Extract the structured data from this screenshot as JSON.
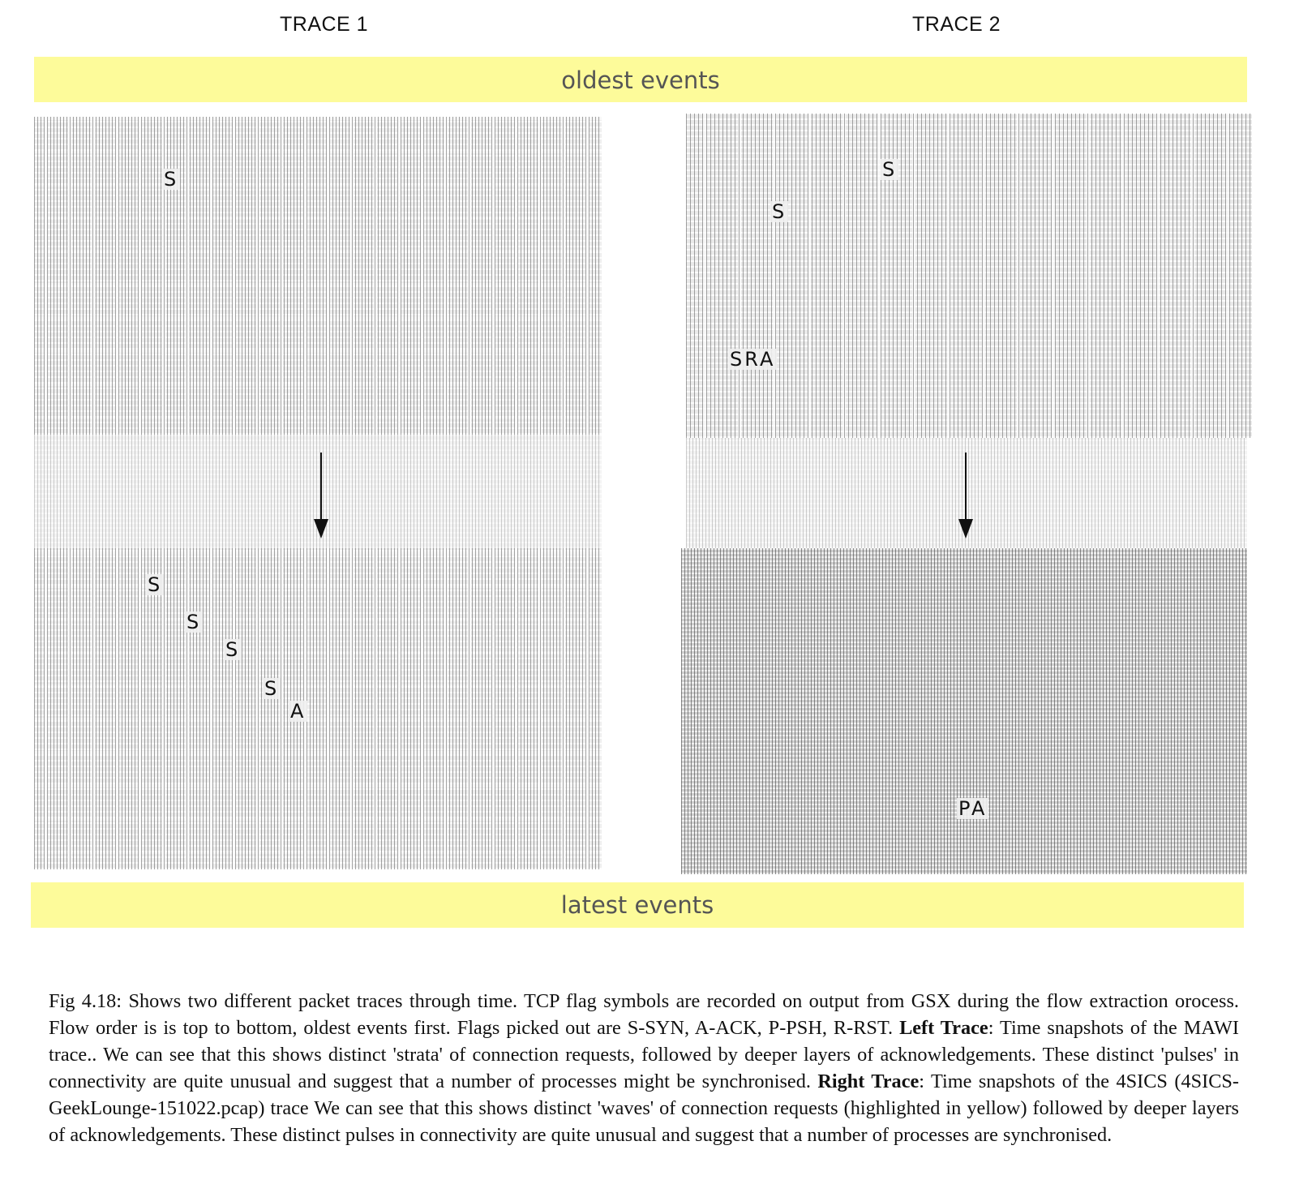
{
  "traces": {
    "trace1_title": "TRACE 1",
    "trace2_title": "TRACE 2"
  },
  "bands": {
    "top_label": "oldest events",
    "bottom_label": "latest events",
    "color": "#fdfb9a"
  },
  "trace1_flags": {
    "top_s": "S",
    "bot_s1": "S",
    "bot_s2": "S",
    "bot_s3": "S",
    "bot_s4": "S",
    "bot_a": "A"
  },
  "trace2_flags": {
    "top_s1": "S",
    "top_s2": "S",
    "top_sra": "SRA",
    "bot_pa": "PA"
  },
  "caption": {
    "part1": "Fig 4.18: Shows two different packet traces through time. TCP flag symbols are recorded on output from GSX during the flow extraction orocess. Flow order is is top to bottom, oldest events first. Flags picked out are S-SYN, A-ACK, P-PSH, R-RST.",
    "left_label": "Left Trace",
    "part2": ":  Time snapshots of the MAWI trace.. We can see that this shows distinct 'strata' of connection requests, followed by deeper layers of acknowledgements. These distinct 'pulses' in connectivity are quite unusual and suggest that a number of processes might be synchronised.",
    "right_label": "Right Trace",
    "part3": ": Time snapshots of the 4SICS (4SICS-GeekLounge-151022.pcap) trace We can see that this shows distinct 'waves' of connection requests (highlighted in yellow) followed by deeper layers of acknowledgements. These distinct pulses in connectivity are quite unusual and suggest that a number of processes are synchronised."
  }
}
